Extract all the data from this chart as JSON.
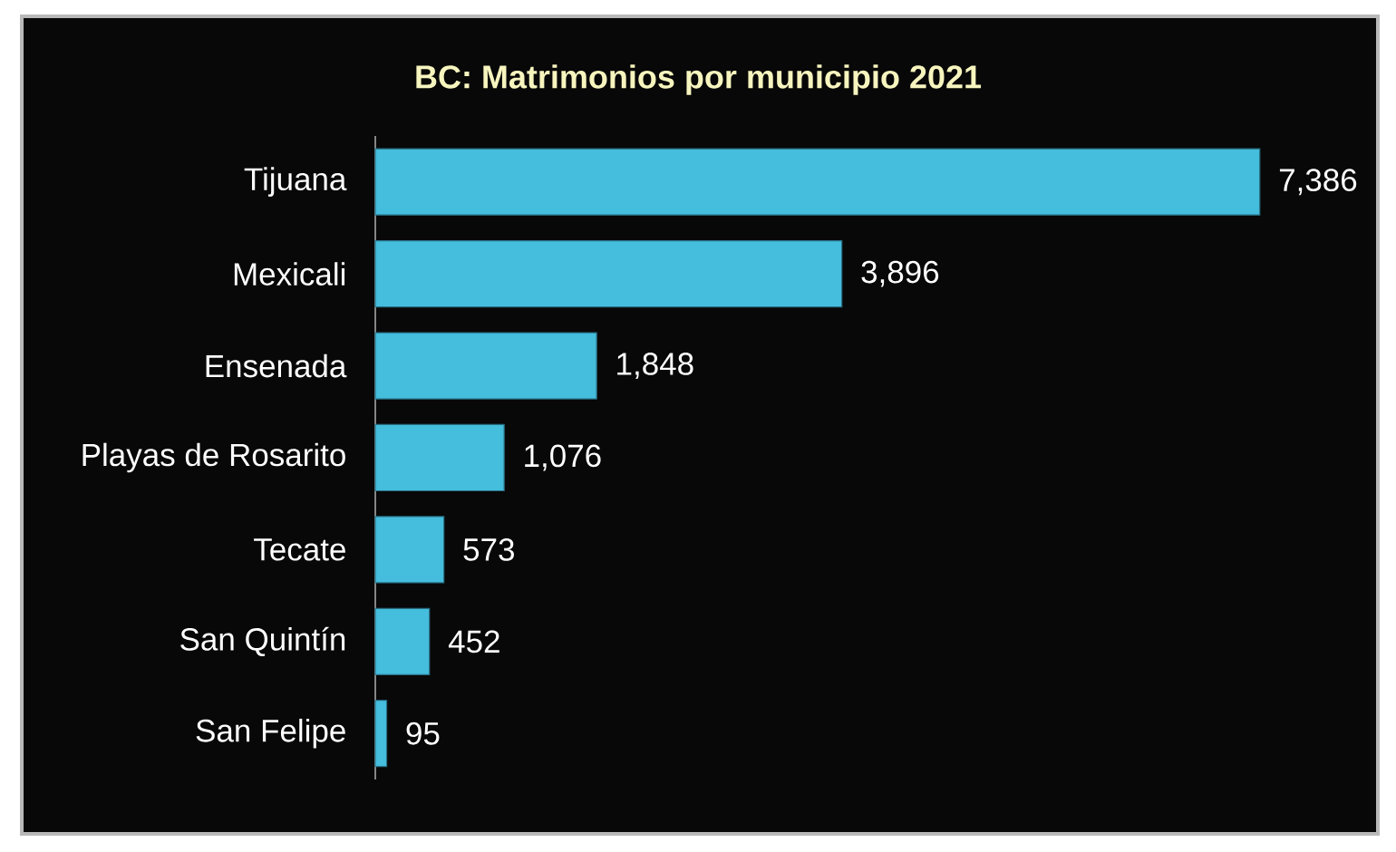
{
  "chart_data": {
    "type": "bar",
    "orientation": "horizontal",
    "title": "BC: Matrimonios por municipio 2021",
    "categories": [
      "Tijuana",
      "Mexicali",
      "Ensenada",
      "Playas de Rosarito",
      "Tecate",
      "San Quintín",
      "San Felipe"
    ],
    "values": [
      7386,
      3896,
      1848,
      1076,
      573,
      452,
      95
    ],
    "value_labels": [
      "7,386",
      "3,896",
      "1,848",
      "1,076",
      "573",
      "452",
      "95"
    ],
    "color": "#45bddd"
  }
}
